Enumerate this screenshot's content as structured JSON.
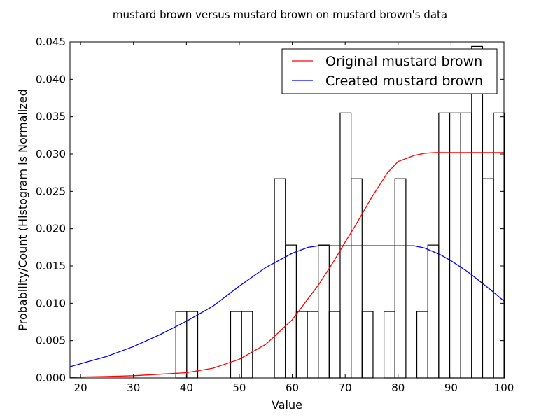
{
  "chart_data": {
    "type": "bar",
    "title": "mustard brown versus mustard brown on mustard brown's data",
    "xlabel": "Value",
    "ylabel": "Probability/Count (Histogram is Normalized",
    "xlim": [
      18,
      100
    ],
    "ylim": [
      0,
      0.045
    ],
    "x_ticks": [
      20,
      30,
      40,
      50,
      60,
      70,
      80,
      90,
      100
    ],
    "y_ticks": [
      0.0,
      0.005,
      0.01,
      0.015,
      0.02,
      0.025,
      0.03,
      0.035,
      0.04,
      0.045
    ],
    "y_tick_labels": [
      "0.000",
      "0.005",
      "0.010",
      "0.015",
      "0.020",
      "0.025",
      "0.030",
      "0.035",
      "0.040",
      "0.045"
    ],
    "grid": false,
    "legend_position": "top-right",
    "histogram": {
      "bin_width": 2.07,
      "bins": [
        {
          "x0": 38.0,
          "value": 0.0089
        },
        {
          "x0": 40.07,
          "value": 0.0089
        },
        {
          "x0": 48.35,
          "value": 0.0089
        },
        {
          "x0": 50.42,
          "value": 0.0089
        },
        {
          "x0": 56.63,
          "value": 0.0267
        },
        {
          "x0": 58.7,
          "value": 0.0178
        },
        {
          "x0": 60.77,
          "value": 0.0089
        },
        {
          "x0": 62.84,
          "value": 0.0089
        },
        {
          "x0": 64.91,
          "value": 0.0178
        },
        {
          "x0": 66.98,
          "value": 0.0089
        },
        {
          "x0": 69.05,
          "value": 0.0355
        },
        {
          "x0": 71.12,
          "value": 0.0267
        },
        {
          "x0": 73.19,
          "value": 0.0089
        },
        {
          "x0": 77.33,
          "value": 0.0089
        },
        {
          "x0": 79.4,
          "value": 0.0267
        },
        {
          "x0": 83.54,
          "value": 0.0089
        },
        {
          "x0": 85.61,
          "value": 0.0178
        },
        {
          "x0": 87.68,
          "value": 0.0355
        },
        {
          "x0": 89.75,
          "value": 0.0355
        },
        {
          "x0": 91.82,
          "value": 0.0355
        },
        {
          "x0": 93.89,
          "value": 0.0444
        },
        {
          "x0": 95.96,
          "value": 0.0267
        },
        {
          "x0": 98.03,
          "value": 0.0355
        }
      ]
    },
    "series": [
      {
        "name": "Original mustard brown",
        "color": "#ff0000",
        "type": "line",
        "x": [
          18,
          25,
          30,
          35,
          40,
          45,
          50,
          55,
          60,
          65,
          68,
          70,
          72,
          75,
          78,
          80,
          83,
          85,
          87,
          90,
          95,
          100
        ],
        "y": [
          0.0001,
          0.0002,
          0.0003,
          0.0005,
          0.0007,
          0.0013,
          0.0025,
          0.0045,
          0.0078,
          0.0125,
          0.0158,
          0.0182,
          0.0205,
          0.0242,
          0.0275,
          0.029,
          0.0298,
          0.0301,
          0.0302,
          0.0302,
          0.0302,
          0.0302
        ]
      },
      {
        "name": "Created mustard brown",
        "color": "#0000ff",
        "type": "line",
        "x": [
          18,
          25,
          30,
          35,
          40,
          45,
          50,
          55,
          60,
          63,
          65,
          70,
          75,
          80,
          83,
          85,
          88,
          90,
          93,
          95,
          98,
          100
        ],
        "y": [
          0.0015,
          0.0029,
          0.0042,
          0.0058,
          0.0076,
          0.0096,
          0.0123,
          0.0148,
          0.0167,
          0.0175,
          0.0177,
          0.0177,
          0.0177,
          0.0177,
          0.0177,
          0.0174,
          0.0165,
          0.0157,
          0.0143,
          0.0132,
          0.0115,
          0.0103
        ]
      }
    ]
  }
}
